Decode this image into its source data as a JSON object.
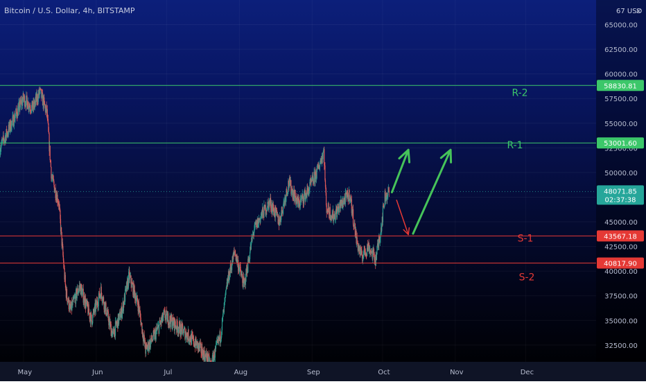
{
  "header": {
    "title": "Bitcoin / U.S. Dollar, 4h, BITSTAMP"
  },
  "axis_corner": "67 USD",
  "colors": {
    "up": "#2a9d8f",
    "down": "#e05a5a",
    "resistance": "#3cc76a",
    "support": "#e53935",
    "arrow_green": "#46c35a",
    "arrow_red": "#e53935",
    "last_price": "#26a69a"
  },
  "chart_data": {
    "type": "line",
    "title": "Bitcoin / U.S. Dollar, 4h, BITSTAMP",
    "ylim": [
      30800,
      67500
    ],
    "y_ticks": [
      32500,
      35000,
      37500,
      40000,
      42500,
      45000,
      47500,
      50000,
      52500,
      55000,
      57500,
      60000,
      62500,
      65000
    ],
    "y_tick_labels": [
      "32500.00",
      "35000.00",
      "37500.00",
      "40000.00",
      "42500.00",
      "45000.00",
      "47500.00",
      "50000.00",
      "52500.00",
      "55000.00",
      "57500.00",
      "60000.00",
      "62500.00",
      "65000.00"
    ],
    "x_labels": [
      {
        "label": "May",
        "date": "2021-05-01"
      },
      {
        "label": "Jun",
        "date": "2021-06-01"
      },
      {
        "label": "Jul",
        "date": "2021-07-01"
      },
      {
        "label": "Aug",
        "date": "2021-08-01"
      },
      {
        "label": "Sep",
        "date": "2021-09-01"
      },
      {
        "label": "Oct",
        "date": "2021-10-01"
      },
      {
        "label": "Nov",
        "date": "2021-11-01"
      },
      {
        "label": "Dec",
        "date": "2021-12-01"
      }
    ],
    "x_range": [
      "2021-04-21",
      "2021-12-31"
    ],
    "price_series": [
      {
        "date": "2021-04-21",
        "value": 52500
      },
      {
        "date": "2021-04-26",
        "value": 55000
      },
      {
        "date": "2021-05-01",
        "value": 57500
      },
      {
        "date": "2021-05-05",
        "value": 56500
      },
      {
        "date": "2021-05-08",
        "value": 58200
      },
      {
        "date": "2021-05-11",
        "value": 56000
      },
      {
        "date": "2021-05-13",
        "value": 49500
      },
      {
        "date": "2021-05-16",
        "value": 47000
      },
      {
        "date": "2021-05-19",
        "value": 38000
      },
      {
        "date": "2021-05-21",
        "value": 36000
      },
      {
        "date": "2021-05-25",
        "value": 38500
      },
      {
        "date": "2021-05-30",
        "value": 35000
      },
      {
        "date": "2021-06-03",
        "value": 38000
      },
      {
        "date": "2021-06-08",
        "value": 33500
      },
      {
        "date": "2021-06-12",
        "value": 36000
      },
      {
        "date": "2021-06-15",
        "value": 39500
      },
      {
        "date": "2021-06-19",
        "value": 36500
      },
      {
        "date": "2021-06-22",
        "value": 32000
      },
      {
        "date": "2021-06-26",
        "value": 33500
      },
      {
        "date": "2021-06-30",
        "value": 35500
      },
      {
        "date": "2021-07-05",
        "value": 34500
      },
      {
        "date": "2021-07-10",
        "value": 33500
      },
      {
        "date": "2021-07-15",
        "value": 32200
      },
      {
        "date": "2021-07-20",
        "value": 30500
      },
      {
        "date": "2021-07-24",
        "value": 33500
      },
      {
        "date": "2021-07-27",
        "value": 39000
      },
      {
        "date": "2021-07-30",
        "value": 42000
      },
      {
        "date": "2021-08-03",
        "value": 38500
      },
      {
        "date": "2021-08-07",
        "value": 44000
      },
      {
        "date": "2021-08-10",
        "value": 45500
      },
      {
        "date": "2021-08-14",
        "value": 47000
      },
      {
        "date": "2021-08-18",
        "value": 45000
      },
      {
        "date": "2021-08-22",
        "value": 49000
      },
      {
        "date": "2021-08-26",
        "value": 46800
      },
      {
        "date": "2021-08-30",
        "value": 48000
      },
      {
        "date": "2021-09-03",
        "value": 50000
      },
      {
        "date": "2021-09-06",
        "value": 52300
      },
      {
        "date": "2021-09-07",
        "value": 46500
      },
      {
        "date": "2021-09-10",
        "value": 45500
      },
      {
        "date": "2021-09-14",
        "value": 47000
      },
      {
        "date": "2021-09-17",
        "value": 47800
      },
      {
        "date": "2021-09-20",
        "value": 43000
      },
      {
        "date": "2021-09-22",
        "value": 41500
      },
      {
        "date": "2021-09-25",
        "value": 42500
      },
      {
        "date": "2021-09-28",
        "value": 41200
      },
      {
        "date": "2021-09-30",
        "value": 43800
      },
      {
        "date": "2021-10-02",
        "value": 47500
      },
      {
        "date": "2021-10-04",
        "value": 48071.85
      }
    ],
    "levels": [
      {
        "label": "R-2",
        "value": 58830.81,
        "value_label": "58830.81",
        "kind": "resistance"
      },
      {
        "label": "R-1",
        "value": 53001.6,
        "value_label": "53001.60",
        "kind": "resistance"
      },
      {
        "label": "S-1",
        "value": 43567.18,
        "value_label": "43567.18",
        "kind": "support"
      },
      {
        "label": "S-2",
        "value": 40817.9,
        "value_label": "40817.90",
        "kind": "support"
      }
    ],
    "last_price": {
      "value": 48071.85,
      "value_label": "48071.85",
      "countdown": "02:37:38"
    },
    "annotations": [
      {
        "kind": "arrow",
        "color": "green",
        "from": {
          "date": "2021-10-05",
          "value": 48000
        },
        "to": {
          "date": "2021-10-12",
          "value": 52300
        }
      },
      {
        "kind": "arrow",
        "color": "red",
        "from": {
          "date": "2021-10-07",
          "value": 47200
        },
        "to": {
          "date": "2021-10-12",
          "value": 43700
        }
      },
      {
        "kind": "arrow",
        "color": "green",
        "from": {
          "date": "2021-10-14",
          "value": 43800
        },
        "to": {
          "date": "2021-10-30",
          "value": 52300
        }
      }
    ]
  }
}
